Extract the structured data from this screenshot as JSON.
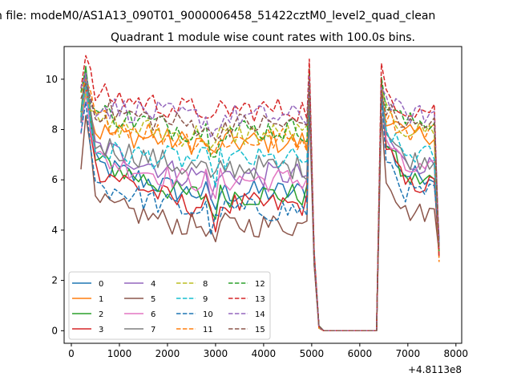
{
  "figure": {
    "suptitle": "n file: modeM0/AS1A13_090T01_9000006458_51422cztM0_level2_quad_clean",
    "title": "Quadrant 1 module wise count rates with 100.0s bins.",
    "offset_text": "+4.8113e8"
  },
  "chart_data": {
    "type": "line",
    "title": "Quadrant 1 module wise count rates with 100.0s bins.",
    "xlabel": "",
    "ylabel": "",
    "x_offset": 481130000,
    "xlim": [
      -150,
      8120
    ],
    "ylim": [
      -0.5,
      11.3
    ],
    "xticks": [
      0,
      1000,
      2000,
      3000,
      4000,
      5000,
      6000,
      7000,
      8000
    ],
    "yticks": [
      0,
      2,
      4,
      6,
      8,
      10
    ],
    "grid": false,
    "legend_position": "lower-left",
    "x_segments": [
      {
        "from": 200,
        "to": 4900,
        "step": 100
      },
      {
        "from": 4950,
        "to": 6450,
        "points": [
          4950,
          5050,
          5150,
          5250,
          6250,
          6350,
          6450
        ]
      },
      {
        "from": 6550,
        "to": 7650,
        "step": 100
      }
    ],
    "series": [
      {
        "name": "0",
        "color": "#1f77b4",
        "dash": "solid",
        "level_early": 6.8,
        "level_mid": 5.5,
        "level_late": 6.2,
        "peak": 9.7
      },
      {
        "name": "1",
        "color": "#ff7f0e",
        "dash": "solid",
        "level_early": 8.0,
        "level_mid": 7.5,
        "level_late": 7.8,
        "peak": 9.9
      },
      {
        "name": "2",
        "color": "#2ca02c",
        "dash": "solid",
        "level_early": 7.0,
        "level_mid": 5.4,
        "level_late": 6.0,
        "peak": 10.4
      },
      {
        "name": "3",
        "color": "#d62728",
        "dash": "solid",
        "level_early": 6.7,
        "level_mid": 5.0,
        "level_late": 5.8,
        "peak": 10.3
      },
      {
        "name": "4",
        "color": "#9467bd",
        "dash": "solid",
        "level_early": 7.5,
        "level_mid": 6.2,
        "level_late": 6.6,
        "peak": 10.0
      },
      {
        "name": "5",
        "color": "#8c564b",
        "dash": "solid",
        "level_early": 5.2,
        "level_mid": 4.2,
        "level_late": 4.7,
        "peak": 9.0
      },
      {
        "name": "6",
        "color": "#e377c2",
        "dash": "solid",
        "level_early": 7.0,
        "level_mid": 6.0,
        "level_late": 6.4,
        "peak": 9.9
      },
      {
        "name": "7",
        "color": "#7f7f7f",
        "dash": "solid",
        "level_early": 7.6,
        "level_mid": 6.5,
        "level_late": 6.8,
        "peak": 10.0
      },
      {
        "name": "8",
        "color": "#bcbd22",
        "dash": "dashed",
        "level_early": 8.3,
        "level_mid": 7.8,
        "level_late": 8.0,
        "peak": 9.8
      },
      {
        "name": "9",
        "color": "#17becf",
        "dash": "dashed",
        "level_early": 7.2,
        "level_mid": 6.8,
        "level_late": 7.0,
        "peak": 9.8
      },
      {
        "name": "10",
        "color": "#1f77b4",
        "dash": "dashed",
        "level_early": 6.0,
        "level_mid": 4.8,
        "level_late": 5.5,
        "peak": 9.6
      },
      {
        "name": "11",
        "color": "#ff7f0e",
        "dash": "dashed",
        "level_early": 8.6,
        "level_mid": 7.6,
        "level_late": 7.9,
        "peak": 10.0
      },
      {
        "name": "12",
        "color": "#2ca02c",
        "dash": "dashed",
        "level_early": 8.8,
        "level_mid": 8.0,
        "level_late": 8.3,
        "peak": 10.4
      },
      {
        "name": "13",
        "color": "#d62728",
        "dash": "dashed",
        "level_early": 9.5,
        "level_mid": 8.8,
        "level_late": 8.8,
        "peak": 10.8
      },
      {
        "name": "14",
        "color": "#9467bd",
        "dash": "dashed",
        "level_early": 9.0,
        "level_mid": 8.5,
        "level_late": 8.6,
        "peak": 10.1
      },
      {
        "name": "15",
        "color": "#8c564b",
        "dash": "dashed",
        "level_early": 8.9,
        "level_mid": 8.2,
        "level_late": 8.2,
        "peak": 9.9
      }
    ]
  }
}
